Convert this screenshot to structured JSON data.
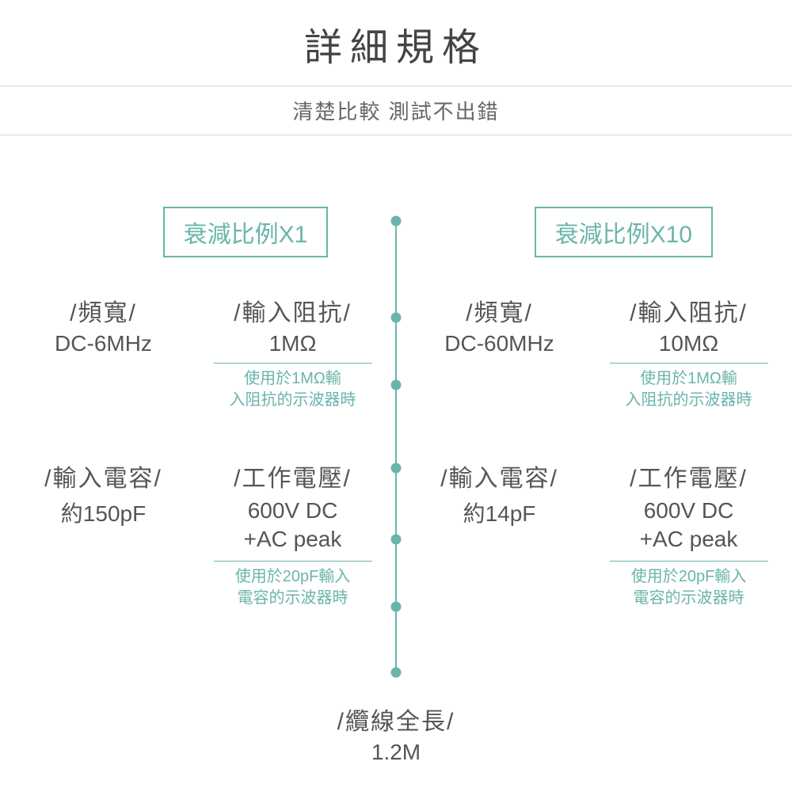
{
  "header": {
    "title": "詳細規格",
    "subtitle": "清楚比較 測試不出錯"
  },
  "colors": {
    "accent": "#6ab5ab",
    "text": "#555555",
    "divider": "#d8d8d8",
    "background": "#ffffff"
  },
  "dots_y": [
    18,
    140,
    225,
    330,
    420,
    505,
    588
  ],
  "left": {
    "header": "衰減比例X1",
    "row1": {
      "a": {
        "label": "/頻寬/",
        "value": "DC-6MHz"
      },
      "b": {
        "label": "/輸入阻抗/",
        "value": "1MΩ",
        "note1": "使用於1MΩ輸",
        "note2": "入阻抗的示波器時"
      }
    },
    "row2": {
      "a": {
        "label": "/輸入電容/",
        "value": "約150pF"
      },
      "b": {
        "label": "/工作電壓/",
        "value1": "600V DC",
        "value2": "+AC peak",
        "note1": "使用於20pF輸入",
        "note2": "電容的示波器時"
      }
    }
  },
  "right": {
    "header": "衰減比例X10",
    "row1": {
      "a": {
        "label": "/頻寬/",
        "value": "DC-60MHz"
      },
      "b": {
        "label": "/輸入阻抗/",
        "value": "10MΩ",
        "note1": "使用於1MΩ輸",
        "note2": "入阻抗的示波器時"
      }
    },
    "row2": {
      "a": {
        "label": "/輸入電容/",
        "value": "約14pF"
      },
      "b": {
        "label": "/工作電壓/",
        "value1": "600V DC",
        "value2": "+AC peak",
        "note1": "使用於20pF輸入",
        "note2": "電容的示波器時"
      }
    }
  },
  "bottom": {
    "label": "/纜線全長/",
    "value": "1.2M"
  }
}
